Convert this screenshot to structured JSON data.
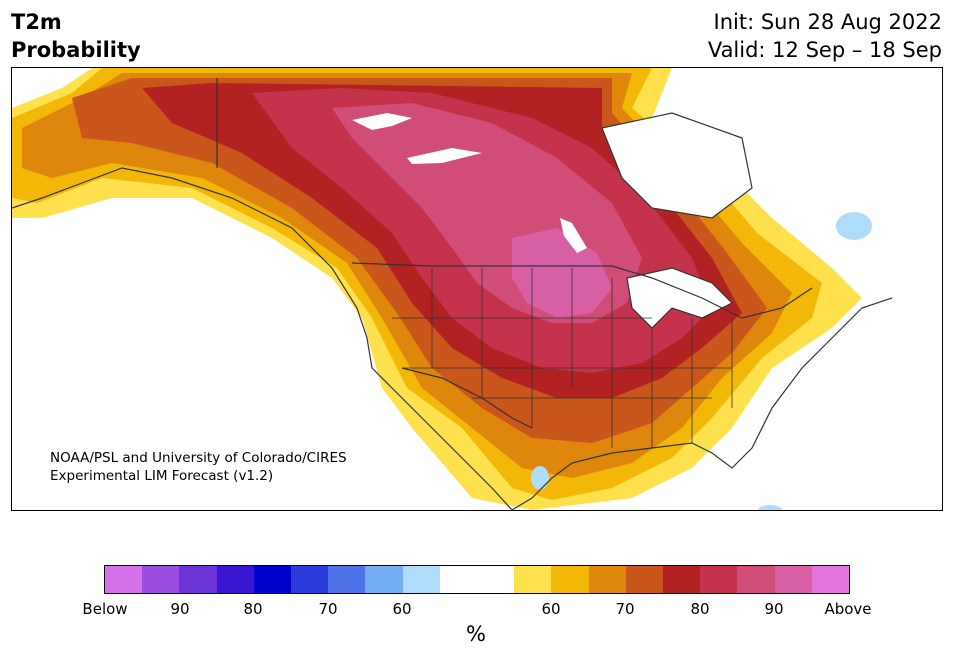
{
  "title": {
    "left_line1": "T2m",
    "left_line2": "Probability",
    "right_line1": "Init: Sun 28 Aug 2022",
    "right_line2": "Valid: 12 Sep – 18 Sep"
  },
  "credit": {
    "line1": "NOAA/PSL and University of Colorado/CIRES",
    "line2": "Experimental LIM Forecast (v1.2)"
  },
  "colorbar": {
    "unit": "%",
    "tick_labels": [
      "Below",
      "90",
      "80",
      "70",
      "60",
      "60",
      "70",
      "80",
      "90",
      "Above"
    ],
    "colors": {
      "below_extreme": "#d670e8",
      "below_90": "#9a4fe0",
      "below_85": "#6c35d6",
      "below_80": "#3a16d3",
      "below_75": "#0000cc",
      "below_70": "#2a3cdc",
      "below_65": "#4f74ea",
      "below_60": "#74aef4",
      "below_55": "#aedcfa",
      "neutral": "#ffffff",
      "above_55": "#ffe14d",
      "above_60": "#f2b707",
      "above_65": "#df860c",
      "above_70": "#c9561a",
      "above_75": "#b22222",
      "above_80": "#c4334b",
      "above_85": "#d04d78",
      "above_90": "#d95fa5",
      "above_extreme": "#e473dc"
    }
  },
  "map": {
    "region": "North America",
    "land_color": "#ffffff",
    "border_color": "#333333"
  }
}
